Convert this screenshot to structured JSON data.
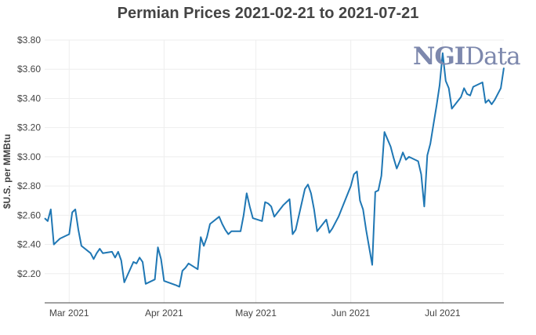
{
  "chart_data": {
    "type": "line",
    "title": "Permian Prices 2021-02-21 to 2021-07-21",
    "xlabel": "",
    "ylabel": "$U.S. per MMBtu",
    "xlim": [
      "2021-02-21",
      "2021-07-21"
    ],
    "ylim": [
      2.0,
      3.8
    ],
    "y_ticks": [
      "$2.20",
      "$2.40",
      "$2.60",
      "$2.80",
      "$3.00",
      "$3.20",
      "$3.40",
      "$3.60",
      "$3.80"
    ],
    "x_ticks": [
      {
        "date": "2021-03-01",
        "label": "Mar 2021"
      },
      {
        "date": "2021-04-01",
        "label": "Apr 2021"
      },
      {
        "date": "2021-05-01",
        "label": "May 2021"
      },
      {
        "date": "2021-06-01",
        "label": "Jun 2021"
      },
      {
        "date": "2021-07-01",
        "label": "Jul 2021"
      }
    ],
    "grid": true,
    "watermark": {
      "part1": "NGI",
      "part2": "Data"
    },
    "colors": {
      "line": "#1f77b4",
      "grid": "#eeeeee",
      "axis": "#444444",
      "title": "#444444",
      "watermark": "#7d88ad"
    },
    "series": [
      {
        "points": [
          [
            "2021-02-21",
            2.58
          ],
          [
            "2021-02-22",
            2.56
          ],
          [
            "2021-02-23",
            2.64
          ],
          [
            "2021-02-24",
            2.4
          ],
          [
            "2021-02-25",
            2.42
          ],
          [
            "2021-02-26",
            2.44
          ],
          [
            "2021-03-01",
            2.47
          ],
          [
            "2021-03-02",
            2.62
          ],
          [
            "2021-03-03",
            2.64
          ],
          [
            "2021-03-04",
            2.5
          ],
          [
            "2021-03-05",
            2.39
          ],
          [
            "2021-03-08",
            2.34
          ],
          [
            "2021-03-09",
            2.3
          ],
          [
            "2021-03-10",
            2.34
          ],
          [
            "2021-03-11",
            2.37
          ],
          [
            "2021-03-12",
            2.34
          ],
          [
            "2021-03-15",
            2.35
          ],
          [
            "2021-03-16",
            2.31
          ],
          [
            "2021-03-17",
            2.35
          ],
          [
            "2021-03-18",
            2.29
          ],
          [
            "2021-03-19",
            2.14
          ],
          [
            "2021-03-22",
            2.28
          ],
          [
            "2021-03-23",
            2.27
          ],
          [
            "2021-03-24",
            2.31
          ],
          [
            "2021-03-25",
            2.28
          ],
          [
            "2021-03-26",
            2.13
          ],
          [
            "2021-03-29",
            2.16
          ],
          [
            "2021-03-30",
            2.38
          ],
          [
            "2021-03-31",
            2.3
          ],
          [
            "2021-04-01",
            2.15
          ],
          [
            "2021-04-05",
            2.12
          ],
          [
            "2021-04-06",
            2.11
          ],
          [
            "2021-04-07",
            2.22
          ],
          [
            "2021-04-08",
            2.24
          ],
          [
            "2021-04-09",
            2.27
          ],
          [
            "2021-04-12",
            2.23
          ],
          [
            "2021-04-13",
            2.45
          ],
          [
            "2021-04-14",
            2.39
          ],
          [
            "2021-04-15",
            2.45
          ],
          [
            "2021-04-16",
            2.54
          ],
          [
            "2021-04-19",
            2.59
          ],
          [
            "2021-04-20",
            2.54
          ],
          [
            "2021-04-21",
            2.5
          ],
          [
            "2021-04-22",
            2.47
          ],
          [
            "2021-04-23",
            2.49
          ],
          [
            "2021-04-26",
            2.49
          ],
          [
            "2021-04-27",
            2.6
          ],
          [
            "2021-04-28",
            2.75
          ],
          [
            "2021-04-29",
            2.66
          ],
          [
            "2021-04-30",
            2.58
          ],
          [
            "2021-05-03",
            2.56
          ],
          [
            "2021-05-04",
            2.69
          ],
          [
            "2021-05-05",
            2.68
          ],
          [
            "2021-05-06",
            2.66
          ],
          [
            "2021-05-07",
            2.59
          ],
          [
            "2021-05-10",
            2.67
          ],
          [
            "2021-05-11",
            2.69
          ],
          [
            "2021-05-12",
            2.71
          ],
          [
            "2021-05-13",
            2.47
          ],
          [
            "2021-05-14",
            2.5
          ],
          [
            "2021-05-17",
            2.78
          ],
          [
            "2021-05-18",
            2.81
          ],
          [
            "2021-05-19",
            2.75
          ],
          [
            "2021-05-20",
            2.64
          ],
          [
            "2021-05-21",
            2.49
          ],
          [
            "2021-05-24",
            2.57
          ],
          [
            "2021-05-25",
            2.48
          ],
          [
            "2021-05-26",
            2.51
          ],
          [
            "2021-05-27",
            2.55
          ],
          [
            "2021-05-28",
            2.59
          ],
          [
            "2021-06-01",
            2.8
          ],
          [
            "2021-06-02",
            2.88
          ],
          [
            "2021-06-03",
            2.9
          ],
          [
            "2021-06-04",
            2.7
          ],
          [
            "2021-06-05",
            2.64
          ],
          [
            "2021-06-06",
            2.5
          ],
          [
            "2021-06-07",
            2.38
          ],
          [
            "2021-06-08",
            2.26
          ],
          [
            "2021-06-09",
            2.76
          ],
          [
            "2021-06-10",
            2.77
          ],
          [
            "2021-06-11",
            2.87
          ],
          [
            "2021-06-12",
            3.17
          ],
          [
            "2021-06-14",
            3.07
          ],
          [
            "2021-06-15",
            2.99
          ],
          [
            "2021-06-16",
            2.92
          ],
          [
            "2021-06-17",
            2.97
          ],
          [
            "2021-06-18",
            3.03
          ],
          [
            "2021-06-19",
            2.98
          ],
          [
            "2021-06-20",
            3.0
          ],
          [
            "2021-06-22",
            2.98
          ],
          [
            "2021-06-23",
            2.97
          ],
          [
            "2021-06-24",
            2.88
          ],
          [
            "2021-06-25",
            2.66
          ],
          [
            "2021-06-26",
            3.01
          ],
          [
            "2021-06-27",
            3.09
          ],
          [
            "2021-06-28",
            3.22
          ],
          [
            "2021-06-29",
            3.35
          ],
          [
            "2021-06-30",
            3.49
          ],
          [
            "2021-07-01",
            3.71
          ],
          [
            "2021-07-02",
            3.52
          ],
          [
            "2021-07-03",
            3.47
          ],
          [
            "2021-07-04",
            3.33
          ],
          [
            "2021-07-07",
            3.41
          ],
          [
            "2021-07-08",
            3.47
          ],
          [
            "2021-07-09",
            3.43
          ],
          [
            "2021-07-10",
            3.42
          ],
          [
            "2021-07-11",
            3.48
          ],
          [
            "2021-07-14",
            3.51
          ],
          [
            "2021-07-15",
            3.37
          ],
          [
            "2021-07-16",
            3.39
          ],
          [
            "2021-07-17",
            3.36
          ],
          [
            "2021-07-18",
            3.39
          ],
          [
            "2021-07-20",
            3.47
          ],
          [
            "2021-07-21",
            3.61
          ]
        ]
      }
    ]
  }
}
